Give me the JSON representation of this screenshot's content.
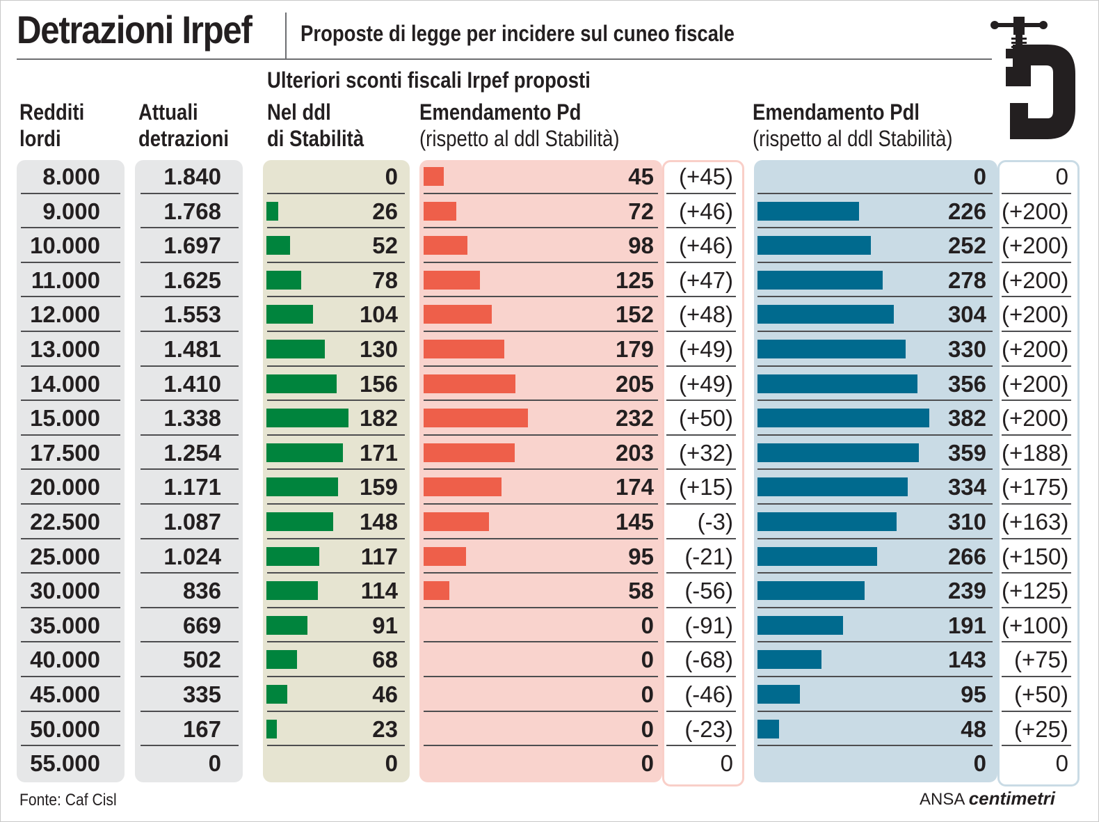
{
  "title": "Detrazioni Irpef",
  "subtitle": "Proposte di legge per incidere sul cuneo fiscale",
  "group_header": "Ulteriori sconti fiscali Irpef proposti",
  "headers": {
    "redditi": [
      "Redditi",
      "lordi"
    ],
    "attuali": [
      "Attuali",
      "detrazioni"
    ],
    "stab": [
      "Nel ddl",
      "di Stabilità"
    ],
    "pd": [
      "Emendamento Pd",
      "(rispetto al ddl Stabilità)"
    ],
    "pdl": [
      "Emendamento Pdl",
      "(rispetto al ddl Stabilità)"
    ]
  },
  "source": "Fonte: Caf Cisl",
  "credit_ansa": "ANSA",
  "credit_brand": "centimetri",
  "colors": {
    "stab_bg": "#e6e4d1",
    "stab_bar": "#00843d",
    "pd_bg": "#f9d3cd",
    "pd_bar": "#ee5f4a",
    "pdl_bg": "#c9dbe5",
    "pdl_bar": "#006a8e",
    "grey_bg": "#e6e7e8"
  },
  "chart_data": {
    "type": "table",
    "rows": [
      {
        "reddito": "8.000",
        "attuali": "1.840",
        "stab": 0,
        "pd": 45,
        "pd_diff": "(+45)",
        "pdl": 0,
        "pdl_diff": "0"
      },
      {
        "reddito": "9.000",
        "attuali": "1.768",
        "stab": 26,
        "pd": 72,
        "pd_diff": "(+46)",
        "pdl": 226,
        "pdl_diff": "(+200)"
      },
      {
        "reddito": "10.000",
        "attuali": "1.697",
        "stab": 52,
        "pd": 98,
        "pd_diff": "(+46)",
        "pdl": 252,
        "pdl_diff": "(+200)"
      },
      {
        "reddito": "11.000",
        "attuali": "1.625",
        "stab": 78,
        "pd": 125,
        "pd_diff": "(+47)",
        "pdl": 278,
        "pdl_diff": "(+200)"
      },
      {
        "reddito": "12.000",
        "attuali": "1.553",
        "stab": 104,
        "pd": 152,
        "pd_diff": "(+48)",
        "pdl": 304,
        "pdl_diff": "(+200)"
      },
      {
        "reddito": "13.000",
        "attuali": "1.481",
        "stab": 130,
        "pd": 179,
        "pd_diff": "(+49)",
        "pdl": 330,
        "pdl_diff": "(+200)"
      },
      {
        "reddito": "14.000",
        "attuali": "1.410",
        "stab": 156,
        "pd": 205,
        "pd_diff": "(+49)",
        "pdl": 356,
        "pdl_diff": "(+200)"
      },
      {
        "reddito": "15.000",
        "attuali": "1.338",
        "stab": 182,
        "pd": 232,
        "pd_diff": "(+50)",
        "pdl": 382,
        "pdl_diff": "(+200)"
      },
      {
        "reddito": "17.500",
        "attuali": "1.254",
        "stab": 171,
        "pd": 203,
        "pd_diff": "(+32)",
        "pdl": 359,
        "pdl_diff": "(+188)"
      },
      {
        "reddito": "20.000",
        "attuali": "1.171",
        "stab": 159,
        "pd": 174,
        "pd_diff": "(+15)",
        "pdl": 334,
        "pdl_diff": "(+175)"
      },
      {
        "reddito": "22.500",
        "attuali": "1.087",
        "stab": 148,
        "pd": 145,
        "pd_diff": "(-3)",
        "pdl": 310,
        "pdl_diff": "(+163)"
      },
      {
        "reddito": "25.000",
        "attuali": "1.024",
        "stab": 117,
        "pd": 95,
        "pd_diff": "(-21)",
        "pdl": 266,
        "pdl_diff": "(+150)"
      },
      {
        "reddito": "30.000",
        "attuali": "836",
        "stab": 114,
        "pd": 58,
        "pd_diff": "(-56)",
        "pdl": 239,
        "pdl_diff": "(+125)"
      },
      {
        "reddito": "35.000",
        "attuali": "669",
        "stab": 91,
        "pd": 0,
        "pd_diff": "(-91)",
        "pdl": 191,
        "pdl_diff": "(+100)"
      },
      {
        "reddito": "40.000",
        "attuali": "502",
        "stab": 68,
        "pd": 0,
        "pd_diff": "(-68)",
        "pdl": 143,
        "pdl_diff": "(+75)"
      },
      {
        "reddito": "45.000",
        "attuali": "335",
        "stab": 46,
        "pd": 0,
        "pd_diff": "(-46)",
        "pdl": 95,
        "pdl_diff": "(+50)"
      },
      {
        "reddito": "50.000",
        "attuali": "167",
        "stab": 23,
        "pd": 0,
        "pd_diff": "(-23)",
        "pdl": 48,
        "pdl_diff": "(+25)"
      },
      {
        "reddito": "55.000",
        "attuali": "0",
        "stab": 0,
        "pd": 0,
        "pd_diff": "0",
        "pdl": 0,
        "pdl_diff": "0"
      }
    ]
  }
}
